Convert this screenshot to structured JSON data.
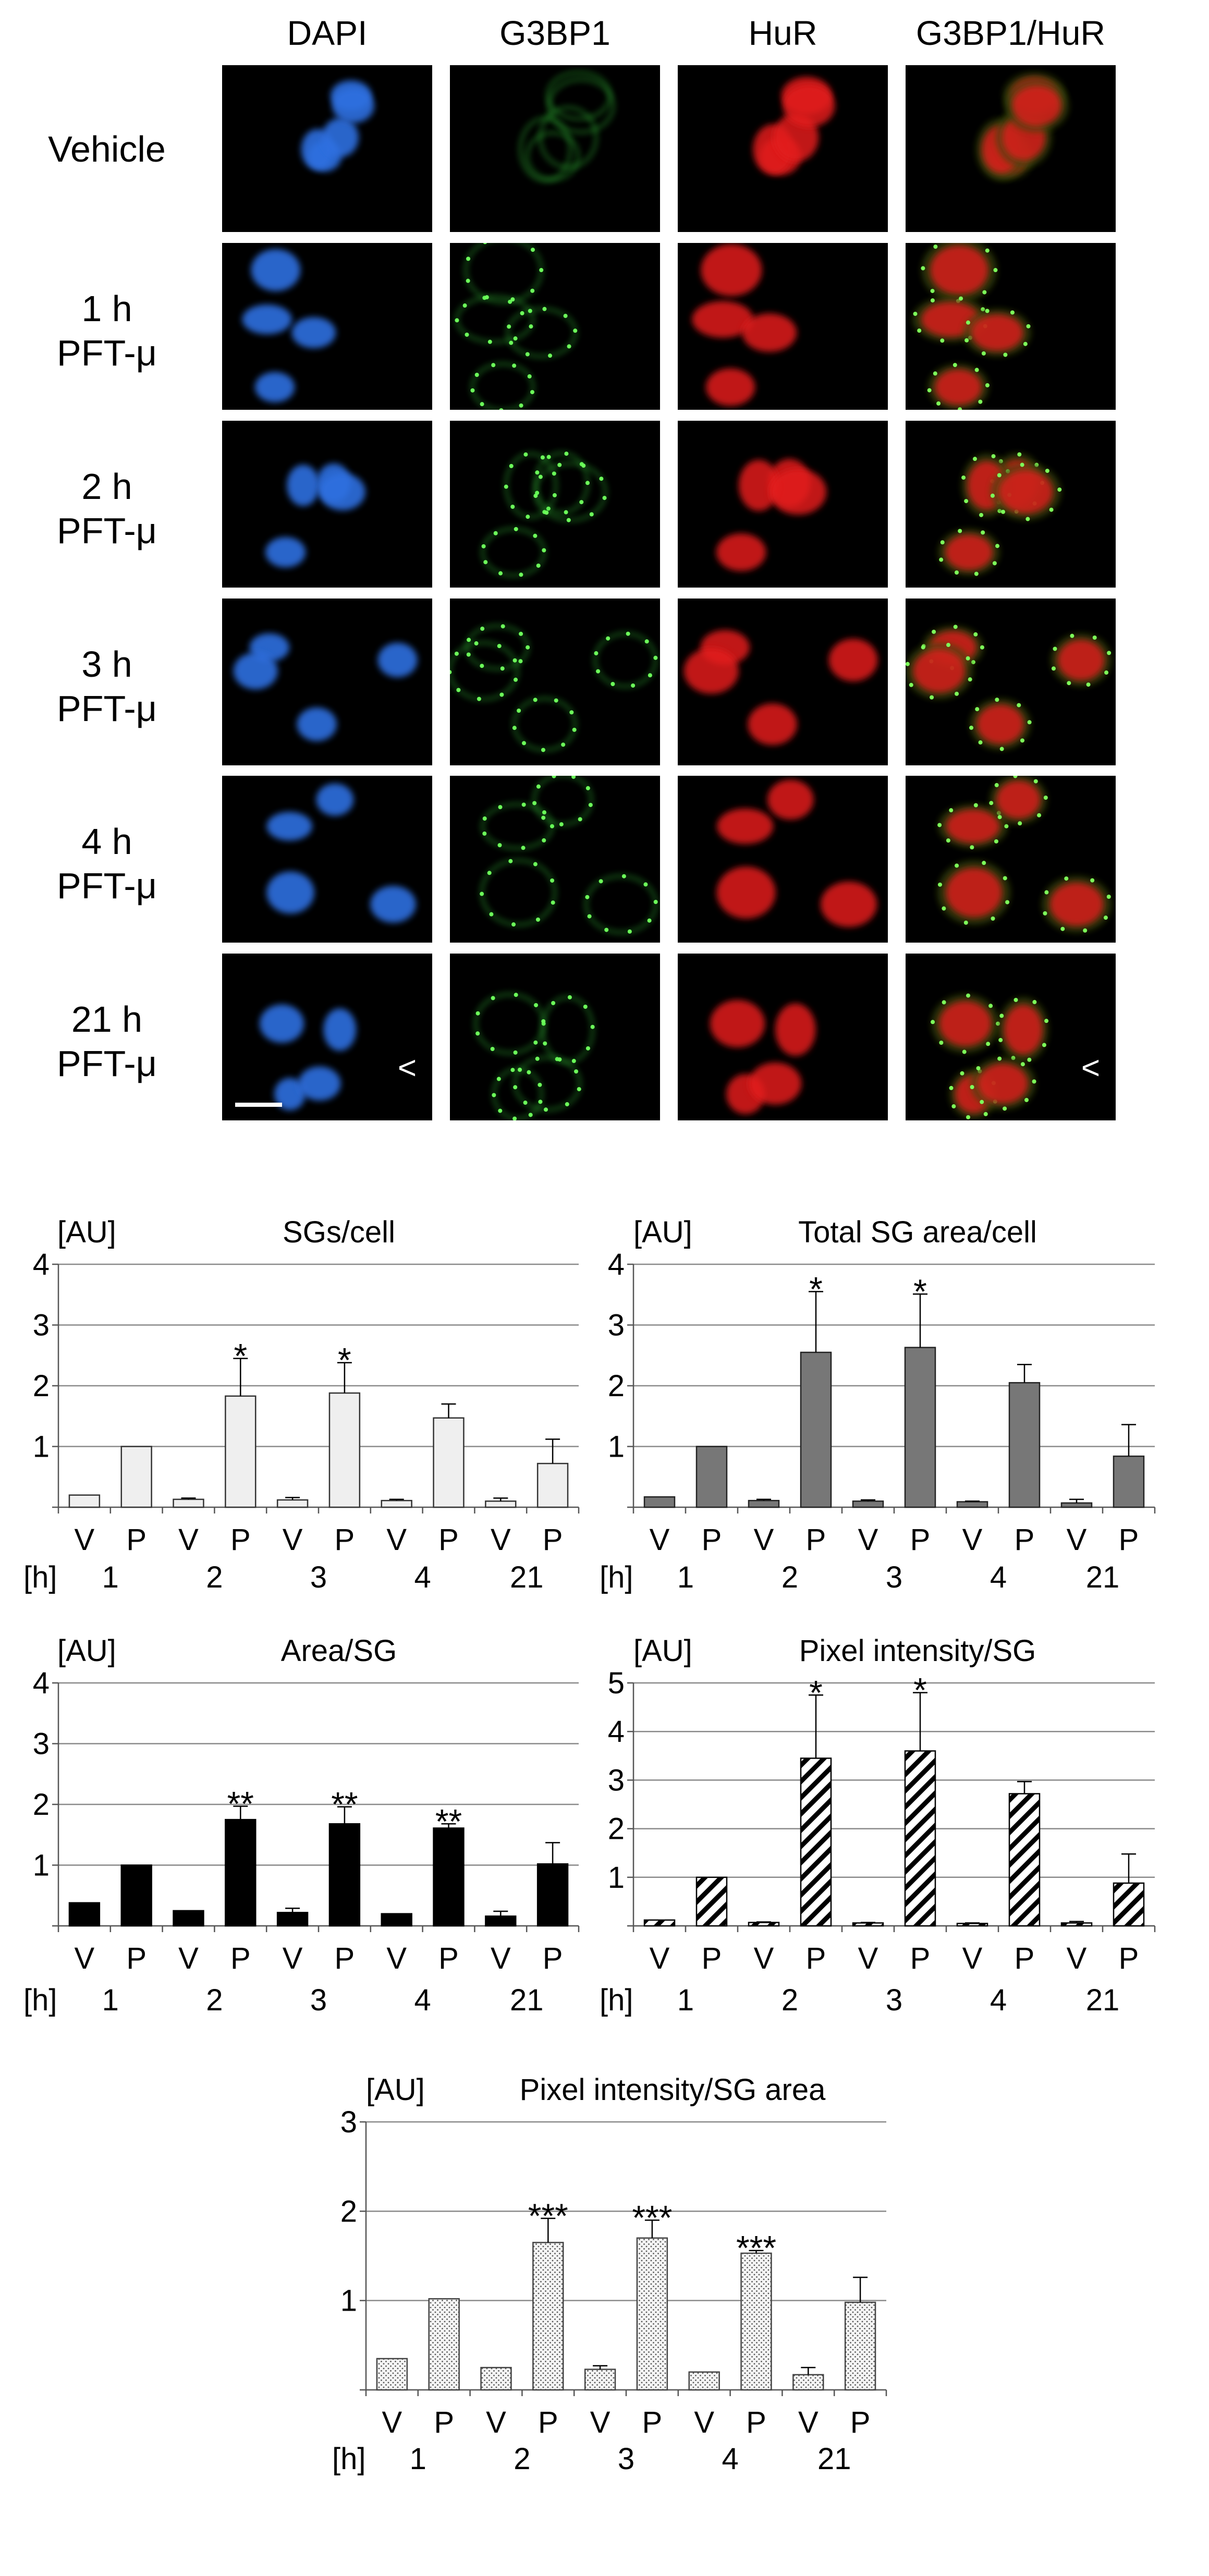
{
  "micrographs": {
    "columns": [
      "DAPI",
      "G3BP1",
      "HuR",
      "G3BP1/HuR"
    ],
    "column_colors": [
      "#2f6fe0",
      "#36c83a",
      "#e21a1a",
      "#d46a22"
    ],
    "rows": [
      {
        "line1": "Vehicle",
        "line2": ""
      },
      {
        "line1": "1 h",
        "line2": "PFT-μ"
      },
      {
        "line1": "2 h",
        "line2": "PFT-μ"
      },
      {
        "line1": "3 h",
        "line2": "PFT-μ"
      },
      {
        "line1": "4 h",
        "line2": "PFT-μ"
      },
      {
        "line1": "21 h",
        "line2": "PFT-μ"
      }
    ],
    "arrow_label": "<"
  },
  "chart_data": [
    {
      "type": "bar",
      "title": "SGs/cell",
      "ylabel": "[AU]",
      "xlabel": "[h]",
      "fill": "light",
      "ylim": [
        0,
        4
      ],
      "yticks": [
        0,
        1,
        2,
        3,
        4
      ],
      "groups": [
        "1",
        "2",
        "3",
        "4",
        "21"
      ],
      "categories": [
        "V",
        "P",
        "V",
        "P",
        "V",
        "P",
        "V",
        "P",
        "V",
        "P"
      ],
      "values": [
        0.2,
        1.0,
        0.13,
        1.83,
        0.12,
        1.88,
        0.11,
        1.47,
        0.1,
        0.72
      ],
      "errors": [
        0,
        0,
        0.02,
        0.62,
        0.04,
        0.5,
        0.02,
        0.23,
        0.05,
        0.4
      ],
      "annotations": [
        "",
        "",
        "",
        "*",
        "",
        "*",
        "",
        "",
        "",
        ""
      ]
    },
    {
      "type": "bar",
      "title": "Total SG area/cell",
      "ylabel": "[AU]",
      "xlabel": "[h]",
      "fill": "gray",
      "ylim": [
        0,
        4
      ],
      "yticks": [
        0,
        1,
        2,
        3,
        4
      ],
      "groups": [
        "1",
        "2",
        "3",
        "4",
        "21"
      ],
      "categories": [
        "V",
        "P",
        "V",
        "P",
        "V",
        "P",
        "V",
        "P",
        "V",
        "P"
      ],
      "values": [
        0.17,
        1.0,
        0.11,
        2.55,
        0.1,
        2.63,
        0.09,
        2.05,
        0.07,
        0.84
      ],
      "errors": [
        0,
        0,
        0.02,
        1.0,
        0.02,
        0.88,
        0.01,
        0.3,
        0.06,
        0.52
      ],
      "annotations": [
        "",
        "",
        "",
        "*",
        "",
        "*",
        "",
        "",
        "",
        ""
      ]
    },
    {
      "type": "bar",
      "title": "Area/SG",
      "ylabel": "[AU]",
      "xlabel": "[h]",
      "fill": "black",
      "ylim": [
        0,
        4
      ],
      "yticks": [
        0,
        1,
        2,
        3,
        4
      ],
      "groups": [
        "1",
        "2",
        "3",
        "4",
        "21"
      ],
      "categories": [
        "V",
        "P",
        "V",
        "P",
        "V",
        "P",
        "V",
        "P",
        "V",
        "P"
      ],
      "values": [
        0.38,
        1.0,
        0.25,
        1.75,
        0.22,
        1.68,
        0.2,
        1.61,
        0.16,
        1.02
      ],
      "errors": [
        0,
        0,
        0,
        0.22,
        0.07,
        0.28,
        0,
        0.07,
        0.08,
        0.35
      ],
      "annotations": [
        "",
        "",
        "",
        "**",
        "",
        "**",
        "",
        "**",
        "",
        ""
      ]
    },
    {
      "type": "bar",
      "title": "Pixel intensity/SG",
      "ylabel": "[AU]",
      "xlabel": "[h]",
      "fill": "hatch",
      "ylim": [
        0,
        5
      ],
      "yticks": [
        0,
        1,
        2,
        3,
        4,
        5
      ],
      "groups": [
        "1",
        "2",
        "3",
        "4",
        "21"
      ],
      "categories": [
        "V",
        "P",
        "V",
        "P",
        "V",
        "P",
        "V",
        "P",
        "V",
        "P"
      ],
      "values": [
        0.12,
        1.0,
        0.07,
        3.45,
        0.06,
        3.6,
        0.05,
        2.72,
        0.06,
        0.88
      ],
      "errors": [
        0,
        0,
        0.01,
        1.3,
        0.01,
        1.2,
        0.01,
        0.25,
        0.03,
        0.6
      ],
      "annotations": [
        "",
        "",
        "",
        "*",
        "",
        "*",
        "",
        "",
        "",
        ""
      ]
    },
    {
      "type": "bar",
      "title": "Pixel intensity/SG area",
      "ylabel": "[AU]",
      "xlabel": "[h]",
      "fill": "dots",
      "ylim": [
        0,
        3
      ],
      "yticks": [
        0,
        1,
        2,
        3
      ],
      "groups": [
        "1",
        "2",
        "3",
        "4",
        "21"
      ],
      "categories": [
        "V",
        "P",
        "V",
        "P",
        "V",
        "P",
        "V",
        "P",
        "V",
        "P"
      ],
      "values": [
        0.35,
        1.02,
        0.25,
        1.65,
        0.23,
        1.7,
        0.2,
        1.53,
        0.17,
        0.98
      ],
      "errors": [
        0,
        0,
        0,
        0.27,
        0.04,
        0.2,
        0,
        0.03,
        0.08,
        0.28
      ],
      "annotations": [
        "",
        "",
        "",
        "***",
        "",
        "***",
        "",
        "***",
        "",
        ""
      ]
    }
  ]
}
